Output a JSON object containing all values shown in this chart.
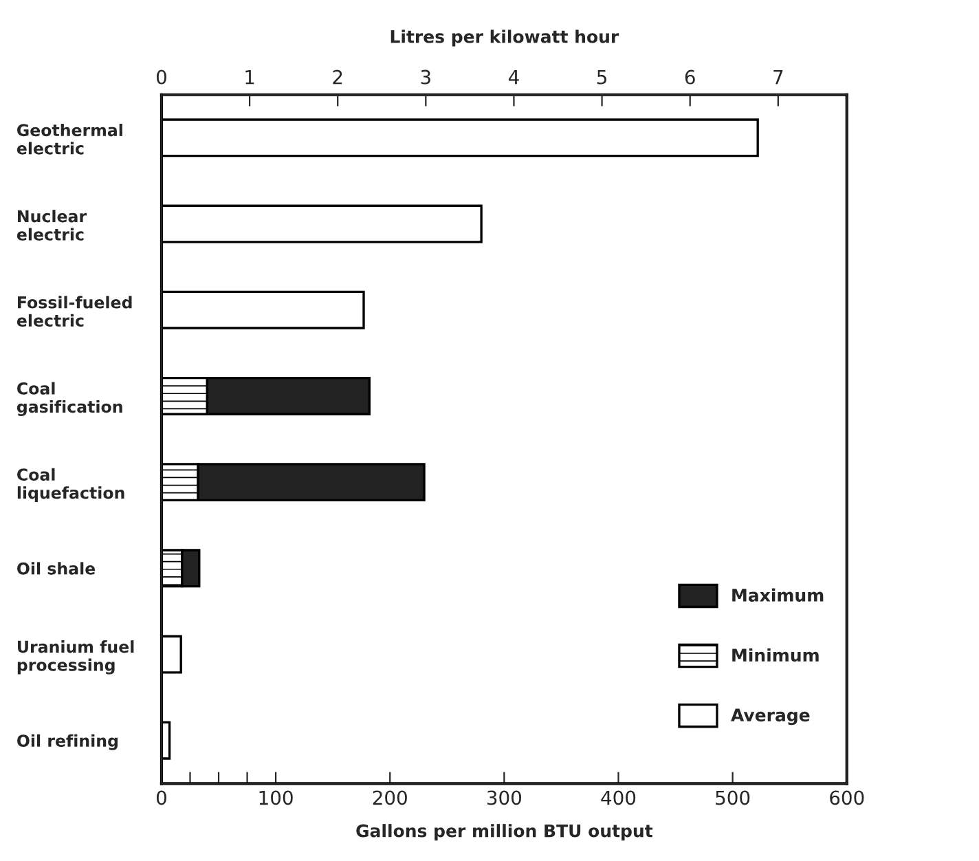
{
  "chart_data": {
    "type": "bar",
    "orientation": "horizontal",
    "stacked": true,
    "xlabel": "Gallons per million BTU output",
    "x2label": "Litres per kilowatt hour",
    "categories": [
      "Geothermal\nelectric",
      "Nuclear\nelectric",
      "Fossil-fueled\nelectric",
      "Coal\ngasification",
      "Coal\nliquefaction",
      "Oil shale",
      "Uranium fuel\nprocessing",
      "Oil refining"
    ],
    "series": [
      {
        "name": "Minimum",
        "color": "#000000",
        "values": [
          null,
          null,
          null,
          40,
          32,
          18,
          null,
          null
        ]
      },
      {
        "name": "Maximum",
        "color": "#222222",
        "values": [
          null,
          null,
          null,
          142,
          198,
          15,
          null,
          null
        ]
      },
      {
        "name": "Average",
        "color": "#ffffff",
        "values": [
          522,
          280,
          177,
          null,
          null,
          null,
          17,
          7
        ]
      }
    ],
    "xlim": [
      0,
      600
    ],
    "xticks": [
      0,
      {
        "value": 25,
        "label": null
      },
      {
        "value": 50,
        "label": null
      },
      {
        "value": 75,
        "label": null
      },
      100,
      200,
      300,
      400,
      500,
      600
    ],
    "x2lim": [
      0,
      7.78
    ],
    "x2ticks": [
      0,
      1,
      2,
      3,
      4,
      5,
      6,
      7
    ],
    "legend": "bottom right",
    "grid": false
  }
}
